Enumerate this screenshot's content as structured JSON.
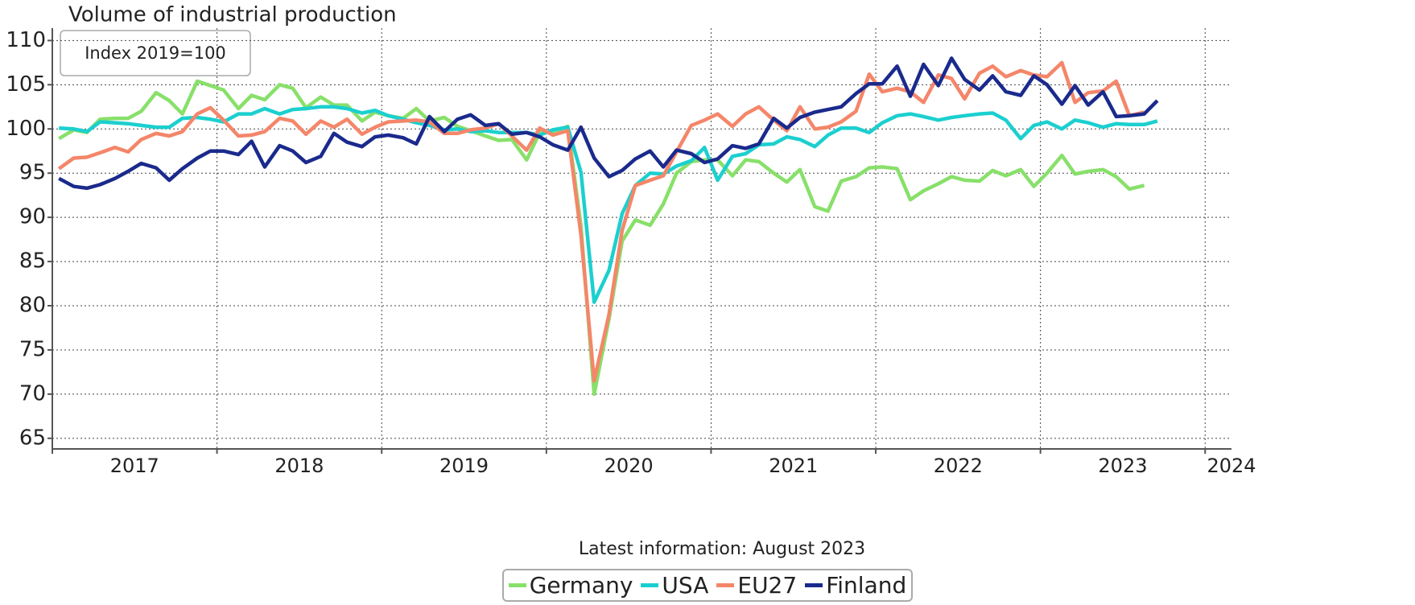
{
  "chart_data": {
    "type": "line",
    "title": "Volume of industrial production",
    "annotation": "Index 2019=100",
    "xlabel": "Latest information: August 2023",
    "x": [
      2017.04,
      2017.13,
      2017.21,
      2017.29,
      2017.38,
      2017.46,
      2017.54,
      2017.63,
      2017.71,
      2017.79,
      2017.88,
      2017.96,
      2018.04,
      2018.13,
      2018.21,
      2018.29,
      2018.38,
      2018.46,
      2018.54,
      2018.63,
      2018.71,
      2018.79,
      2018.88,
      2018.96,
      2019.04,
      2019.13,
      2019.21,
      2019.29,
      2019.38,
      2019.46,
      2019.54,
      2019.63,
      2019.71,
      2019.79,
      2019.88,
      2019.96,
      2020.04,
      2020.13,
      2020.21,
      2020.29,
      2020.38,
      2020.46,
      2020.54,
      2020.63,
      2020.71,
      2020.79,
      2020.88,
      2020.96,
      2021.04,
      2021.13,
      2021.21,
      2021.29,
      2021.38,
      2021.46,
      2021.54,
      2021.63,
      2021.71,
      2021.79,
      2021.88,
      2021.96,
      2022.04,
      2022.13,
      2022.21,
      2022.29,
      2022.38,
      2022.46,
      2022.54,
      2022.63,
      2022.71,
      2022.79,
      2022.88,
      2022.96,
      2023.04,
      2023.13,
      2023.21,
      2023.29,
      2023.38,
      2023.46,
      2023.54,
      2023.63,
      2023.71
    ],
    "series": [
      {
        "name": "Germany",
        "color": "#88e06a",
        "values": [
          98.9,
          99.9,
          99.6,
          101.1,
          101.2,
          101.2,
          102,
          104.1,
          103.2,
          101.7,
          105.4,
          104.9,
          104.4,
          102.3,
          103.8,
          103.3,
          105,
          104.6,
          102.4,
          103.6,
          102.7,
          102.7,
          100.9,
          101.9,
          101.5,
          101.2,
          102.3,
          100.9,
          101.3,
          100.3,
          99.8,
          99.2,
          98.7,
          98.8,
          96.5,
          99.6,
          99.6,
          100.3,
          89,
          70,
          78.5,
          87.3,
          89.7,
          89.1,
          91.5,
          95,
          96.3,
          96.5,
          96.5,
          94.7,
          96.5,
          96.3,
          95,
          94,
          95.4,
          91.2,
          90.7,
          94.1,
          94.6,
          95.6,
          95.7,
          95.5,
          92,
          93,
          93.8,
          94.6,
          94.2,
          94.1,
          95.3,
          94.7,
          95.4,
          93.5,
          95,
          97,
          94.9,
          95.2,
          95.4,
          94.6,
          93.2,
          93.6,
          null
        ]
      },
      {
        "name": "USA",
        "color": "#1ccfcf",
        "values": [
          100.1,
          100,
          99.7,
          100.8,
          100.7,
          100.6,
          100.4,
          100.2,
          100.2,
          101.2,
          101.3,
          101.1,
          100.8,
          101.7,
          101.7,
          102.3,
          101.7,
          102.2,
          102.3,
          102.5,
          102.5,
          102.3,
          101.8,
          102.1,
          101.5,
          101.1,
          100.7,
          100.4,
          99.9,
          100,
          99.7,
          99.8,
          99.6,
          99.6,
          99.6,
          99.3,
          99.9,
          100.2,
          95.1,
          80.4,
          84,
          90.4,
          93.6,
          95,
          94.9,
          95.8,
          96.4,
          97.9,
          94.2,
          96.9,
          97.2,
          98.2,
          98.3,
          99.1,
          98.8,
          98,
          99.3,
          100.1,
          100.1,
          99.6,
          100.7,
          101.5,
          101.7,
          101.4,
          101,
          101.3,
          101.5,
          101.7,
          101.8,
          101,
          98.9,
          100.4,
          100.8,
          100,
          101,
          100.7,
          100.2,
          100.6,
          100.5,
          100.5,
          100.9
        ]
      },
      {
        "name": "EU27",
        "color": "#f4866a",
        "values": [
          95.5,
          96.7,
          96.8,
          97.3,
          97.9,
          97.4,
          98.8,
          99.5,
          99.2,
          99.7,
          101.7,
          102.4,
          101,
          99.2,
          99.3,
          99.7,
          101.2,
          100.9,
          99.4,
          100.9,
          100.2,
          101.1,
          99.4,
          100.2,
          100.8,
          100.9,
          101,
          100.8,
          99.5,
          99.5,
          99.9,
          100.1,
          100.6,
          99.2,
          97.6,
          100.1,
          99.3,
          99.8,
          88,
          71.5,
          79,
          88.5,
          93.6,
          94.2,
          94.7,
          97.4,
          100.4,
          101,
          101.7,
          100.3,
          101.7,
          102.5,
          101,
          99.8,
          102.5,
          100,
          100.2,
          100.8,
          102,
          106.2,
          104.2,
          104.6,
          104.2,
          103,
          106.1,
          105.7,
          103.4,
          106.3,
          107.1,
          105.9,
          106.6,
          106.1,
          105.9,
          107.5,
          103,
          104.1,
          104.3,
          105.4,
          101.5,
          101.9,
          null
        ]
      },
      {
        "name": "Finland",
        "color": "#1a2a8c",
        "values": [
          94.4,
          93.5,
          93.3,
          93.7,
          94.4,
          95.2,
          96.1,
          95.6,
          94.2,
          95.5,
          96.7,
          97.5,
          97.5,
          97.1,
          98.6,
          95.7,
          98.1,
          97.5,
          96.2,
          96.9,
          99.5,
          98.5,
          98,
          99.1,
          99.3,
          99,
          98.3,
          101.4,
          99.7,
          101.1,
          101.6,
          100.4,
          100.6,
          99.4,
          99.6,
          99.1,
          98.2,
          97.6,
          100.2,
          96.7,
          94.6,
          95.3,
          96.6,
          97.5,
          95.7,
          97.6,
          97.2,
          96.2,
          96.6,
          98.1,
          97.8,
          98.3,
          101.2,
          100.1,
          101.3,
          101.9,
          102.2,
          102.5,
          104,
          105.1,
          105.1,
          107.1,
          103.7,
          107.3,
          104.9,
          108,
          105.6,
          104.4,
          106,
          104.2,
          103.8,
          106,
          105,
          102.8,
          104.9,
          102.7,
          104.2,
          101.4,
          101.5,
          101.7,
          103.2
        ]
      }
    ],
    "xlim": [
      2017,
      2024.16
    ],
    "xticks": [
      2017,
      2018,
      2019,
      2020,
      2021,
      2022,
      2023,
      2024
    ],
    "ylim": [
      63.8,
      111.4
    ],
    "yticks": [
      65,
      70,
      75,
      80,
      85,
      90,
      95,
      100,
      105,
      110
    ],
    "grid": true,
    "legend": "bottom"
  }
}
